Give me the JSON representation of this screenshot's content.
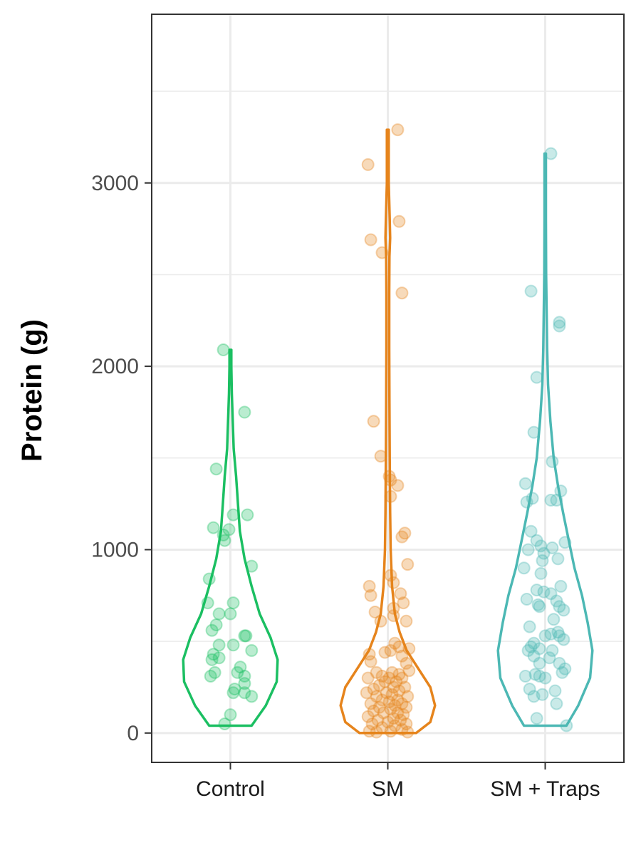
{
  "chart_data": {
    "type": "violin",
    "xlabel": "",
    "ylabel": "Protein (g)",
    "categories": [
      "Control",
      "SM",
      "SM + Traps"
    ],
    "colors": [
      "#1bbf62",
      "#e6841c",
      "#4cb8b4"
    ],
    "ylim": [
      -160,
      3920
    ],
    "yticks": [
      0,
      1000,
      2000,
      3000
    ],
    "ytick_labels": [
      "0",
      "1000",
      "2000",
      "3000"
    ],
    "grid": true,
    "series": [
      {
        "name": "Control",
        "range": [
          40,
          2090
        ],
        "violin_profile": [
          [
            40,
            0.45
          ],
          [
            150,
            0.75
          ],
          [
            280,
            0.98
          ],
          [
            400,
            1.0
          ],
          [
            520,
            0.85
          ],
          [
            650,
            0.62
          ],
          [
            800,
            0.45
          ],
          [
            950,
            0.3
          ],
          [
            1100,
            0.2
          ],
          [
            1250,
            0.16
          ],
          [
            1400,
            0.12
          ],
          [
            1550,
            0.07
          ],
          [
            1700,
            0.05
          ],
          [
            1850,
            0.03
          ],
          [
            2000,
            0.02
          ],
          [
            2090,
            0.02
          ]
        ],
        "points": [
          {
            "j": -0.05,
            "y": 2090
          },
          {
            "j": 0.1,
            "y": 1750
          },
          {
            "j": -0.1,
            "y": 1440
          },
          {
            "j": 0.02,
            "y": 1190
          },
          {
            "j": 0.12,
            "y": 1190
          },
          {
            "j": -0.12,
            "y": 1120
          },
          {
            "j": -0.05,
            "y": 1080
          },
          {
            "j": -0.01,
            "y": 1110
          },
          {
            "j": -0.04,
            "y": 1050
          },
          {
            "j": 0.15,
            "y": 910
          },
          {
            "j": -0.15,
            "y": 840
          },
          {
            "j": -0.16,
            "y": 710
          },
          {
            "j": 0.02,
            "y": 710
          },
          {
            "j": -0.08,
            "y": 650
          },
          {
            "j": 0.0,
            "y": 650
          },
          {
            "j": -0.1,
            "y": 590
          },
          {
            "j": -0.13,
            "y": 560
          },
          {
            "j": 0.1,
            "y": 530
          },
          {
            "j": 0.11,
            "y": 530
          },
          {
            "j": -0.08,
            "y": 480
          },
          {
            "j": 0.02,
            "y": 480
          },
          {
            "j": 0.15,
            "y": 450
          },
          {
            "j": -0.12,
            "y": 430
          },
          {
            "j": -0.08,
            "y": 410
          },
          {
            "j": -0.13,
            "y": 400
          },
          {
            "j": 0.07,
            "y": 360
          },
          {
            "j": 0.05,
            "y": 330
          },
          {
            "j": -0.11,
            "y": 330
          },
          {
            "j": 0.1,
            "y": 310
          },
          {
            "j": -0.14,
            "y": 310
          },
          {
            "j": 0.1,
            "y": 270
          },
          {
            "j": 0.03,
            "y": 240
          },
          {
            "j": 0.1,
            "y": 220
          },
          {
            "j": 0.02,
            "y": 220
          },
          {
            "j": 0.15,
            "y": 200
          },
          {
            "j": 0.0,
            "y": 100
          },
          {
            "j": -0.04,
            "y": 50
          }
        ]
      },
      {
        "name": "SM",
        "range": [
          0,
          3290
        ],
        "violin_profile": [
          [
            0,
            0.6
          ],
          [
            60,
            0.9
          ],
          [
            150,
            1.0
          ],
          [
            250,
            0.9
          ],
          [
            350,
            0.65
          ],
          [
            450,
            0.4
          ],
          [
            550,
            0.25
          ],
          [
            650,
            0.15
          ],
          [
            800,
            0.09
          ],
          [
            1000,
            0.06
          ],
          [
            1200,
            0.05
          ],
          [
            1500,
            0.04
          ],
          [
            1800,
            0.035
          ],
          [
            2100,
            0.03
          ],
          [
            2400,
            0.03
          ],
          [
            2600,
            0.035
          ],
          [
            2700,
            0.05
          ],
          [
            2800,
            0.04
          ],
          [
            3000,
            0.02
          ],
          [
            3290,
            0.02
          ]
        ],
        "points": [
          {
            "j": 0.07,
            "y": 3290
          },
          {
            "j": -0.14,
            "y": 3100
          },
          {
            "j": 0.08,
            "y": 2790
          },
          {
            "j": -0.12,
            "y": 2690
          },
          {
            "j": -0.04,
            "y": 2620
          },
          {
            "j": 0.1,
            "y": 2400
          },
          {
            "j": -0.1,
            "y": 1700
          },
          {
            "j": -0.05,
            "y": 1510
          },
          {
            "j": 0.01,
            "y": 1400
          },
          {
            "j": 0.02,
            "y": 1380
          },
          {
            "j": 0.07,
            "y": 1350
          },
          {
            "j": 0.02,
            "y": 1290
          },
          {
            "j": 0.12,
            "y": 1090
          },
          {
            "j": 0.1,
            "y": 1070
          },
          {
            "j": 0.14,
            "y": 920
          },
          {
            "j": 0.02,
            "y": 860
          },
          {
            "j": 0.04,
            "y": 820
          },
          {
            "j": -0.13,
            "y": 800
          },
          {
            "j": -0.12,
            "y": 750
          },
          {
            "j": 0.09,
            "y": 760
          },
          {
            "j": 0.11,
            "y": 710
          },
          {
            "j": 0.04,
            "y": 680
          },
          {
            "j": -0.09,
            "y": 660
          },
          {
            "j": 0.04,
            "y": 640
          },
          {
            "j": -0.05,
            "y": 610
          },
          {
            "j": 0.13,
            "y": 610
          },
          {
            "j": 0.05,
            "y": 490
          },
          {
            "j": 0.08,
            "y": 470
          },
          {
            "j": 0.15,
            "y": 460
          },
          {
            "j": -0.02,
            "y": 440
          },
          {
            "j": 0.02,
            "y": 450
          },
          {
            "j": -0.13,
            "y": 430
          },
          {
            "j": 0.1,
            "y": 420
          },
          {
            "j": -0.12,
            "y": 390
          },
          {
            "j": 0.13,
            "y": 380
          },
          {
            "j": 0.03,
            "y": 330
          },
          {
            "j": -0.08,
            "y": 330
          },
          {
            "j": 0.08,
            "y": 320
          },
          {
            "j": 0.15,
            "y": 340
          },
          {
            "j": -0.04,
            "y": 310
          },
          {
            "j": 0.01,
            "y": 300
          },
          {
            "j": 0.1,
            "y": 300
          },
          {
            "j": -0.14,
            "y": 300
          },
          {
            "j": 0.06,
            "y": 280
          },
          {
            "j": -0.02,
            "y": 280
          },
          {
            "j": -0.06,
            "y": 260
          },
          {
            "j": 0.04,
            "y": 250
          },
          {
            "j": 0.12,
            "y": 250
          },
          {
            "j": -0.1,
            "y": 240
          },
          {
            "j": 0.08,
            "y": 230
          },
          {
            "j": -0.01,
            "y": 220
          },
          {
            "j": -0.15,
            "y": 220
          },
          {
            "j": 0.03,
            "y": 210
          },
          {
            "j": 0.14,
            "y": 200
          },
          {
            "j": -0.08,
            "y": 200
          },
          {
            "j": 0.07,
            "y": 180
          },
          {
            "j": -0.04,
            "y": 180
          },
          {
            "j": 0.01,
            "y": 170
          },
          {
            "j": -0.12,
            "y": 160
          },
          {
            "j": 0.1,
            "y": 160
          },
          {
            "j": 0.05,
            "y": 150
          },
          {
            "j": -0.06,
            "y": 140
          },
          {
            "j": 0.13,
            "y": 140
          },
          {
            "j": 0.02,
            "y": 130
          },
          {
            "j": -0.1,
            "y": 120
          },
          {
            "j": 0.07,
            "y": 110
          },
          {
            "j": -0.03,
            "y": 110
          },
          {
            "j": 0.11,
            "y": 100
          },
          {
            "j": -0.14,
            "y": 90
          },
          {
            "j": 0.04,
            "y": 80
          },
          {
            "j": -0.07,
            "y": 70
          },
          {
            "j": 0.09,
            "y": 70
          },
          {
            "j": 0.0,
            "y": 60
          },
          {
            "j": -0.11,
            "y": 50
          },
          {
            "j": 0.13,
            "y": 50
          },
          {
            "j": 0.05,
            "y": 40
          },
          {
            "j": -0.04,
            "y": 30
          },
          {
            "j": 0.1,
            "y": 20
          },
          {
            "j": -0.13,
            "y": 10
          },
          {
            "j": 0.02,
            "y": 10
          },
          {
            "j": -0.08,
            "y": 5
          },
          {
            "j": 0.14,
            "y": 5
          }
        ]
      },
      {
        "name": "SM + Traps",
        "range": [
          40,
          3160
        ],
        "violin_profile": [
          [
            40,
            0.45
          ],
          [
            150,
            0.7
          ],
          [
            300,
            0.95
          ],
          [
            450,
            1.0
          ],
          [
            600,
            0.9
          ],
          [
            750,
            0.78
          ],
          [
            900,
            0.62
          ],
          [
            1050,
            0.5
          ],
          [
            1200,
            0.38
          ],
          [
            1350,
            0.27
          ],
          [
            1500,
            0.18
          ],
          [
            1700,
            0.11
          ],
          [
            1900,
            0.06
          ],
          [
            2100,
            0.04
          ],
          [
            2300,
            0.03
          ],
          [
            2500,
            0.02
          ],
          [
            2800,
            0.015
          ],
          [
            3160,
            0.015
          ]
        ],
        "points": [
          {
            "j": 0.04,
            "y": 3160
          },
          {
            "j": -0.1,
            "y": 2410
          },
          {
            "j": 0.1,
            "y": 2240
          },
          {
            "j": 0.1,
            "y": 2220
          },
          {
            "j": -0.06,
            "y": 1940
          },
          {
            "j": -0.08,
            "y": 1640
          },
          {
            "j": 0.05,
            "y": 1480
          },
          {
            "j": -0.14,
            "y": 1360
          },
          {
            "j": 0.11,
            "y": 1320
          },
          {
            "j": -0.09,
            "y": 1280
          },
          {
            "j": -0.13,
            "y": 1260
          },
          {
            "j": 0.04,
            "y": 1270
          },
          {
            "j": 0.08,
            "y": 1270
          },
          {
            "j": -0.1,
            "y": 1100
          },
          {
            "j": -0.06,
            "y": 1050
          },
          {
            "j": 0.14,
            "y": 1040
          },
          {
            "j": -0.03,
            "y": 1020
          },
          {
            "j": -0.12,
            "y": 1000
          },
          {
            "j": 0.05,
            "y": 1010
          },
          {
            "j": -0.01,
            "y": 980
          },
          {
            "j": 0.09,
            "y": 950
          },
          {
            "j": -0.02,
            "y": 940
          },
          {
            "j": -0.15,
            "y": 900
          },
          {
            "j": -0.03,
            "y": 870
          },
          {
            "j": -0.06,
            "y": 780
          },
          {
            "j": 0.11,
            "y": 800
          },
          {
            "j": -0.01,
            "y": 770
          },
          {
            "j": 0.04,
            "y": 760
          },
          {
            "j": -0.13,
            "y": 730
          },
          {
            "j": 0.08,
            "y": 720
          },
          {
            "j": -0.05,
            "y": 700
          },
          {
            "j": -0.04,
            "y": 690
          },
          {
            "j": 0.1,
            "y": 690
          },
          {
            "j": 0.13,
            "y": 670
          },
          {
            "j": 0.06,
            "y": 620
          },
          {
            "j": -0.11,
            "y": 580
          },
          {
            "j": 0.09,
            "y": 550
          },
          {
            "j": 0.04,
            "y": 540
          },
          {
            "j": 0.0,
            "y": 530
          },
          {
            "j": 0.1,
            "y": 530
          },
          {
            "j": 0.13,
            "y": 510
          },
          {
            "j": -0.08,
            "y": 490
          },
          {
            "j": -0.1,
            "y": 470
          },
          {
            "j": -0.04,
            "y": 460
          },
          {
            "j": 0.05,
            "y": 450
          },
          {
            "j": -0.12,
            "y": 450
          },
          {
            "j": -0.08,
            "y": 420
          },
          {
            "j": 0.03,
            "y": 410
          },
          {
            "j": -0.04,
            "y": 380
          },
          {
            "j": 0.1,
            "y": 380
          },
          {
            "j": 0.14,
            "y": 350
          },
          {
            "j": 0.12,
            "y": 330
          },
          {
            "j": -0.07,
            "y": 320
          },
          {
            "j": -0.04,
            "y": 310
          },
          {
            "j": -0.14,
            "y": 310
          },
          {
            "j": 0.0,
            "y": 300
          },
          {
            "j": -0.11,
            "y": 240
          },
          {
            "j": 0.07,
            "y": 230
          },
          {
            "j": -0.02,
            "y": 210
          },
          {
            "j": -0.08,
            "y": 200
          },
          {
            "j": 0.08,
            "y": 160
          },
          {
            "j": -0.06,
            "y": 80
          },
          {
            "j": 0.15,
            "y": 40
          }
        ]
      }
    ]
  }
}
